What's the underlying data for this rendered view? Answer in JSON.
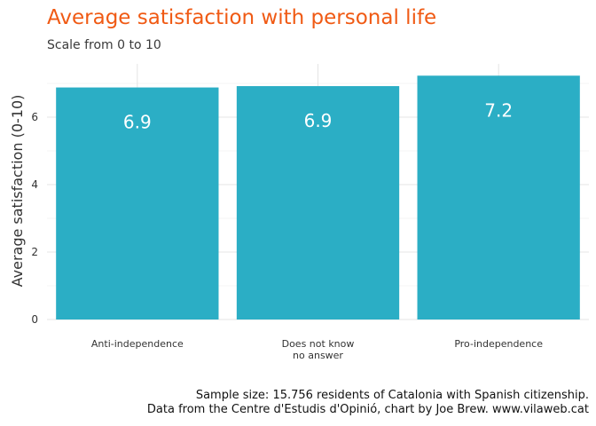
{
  "chart_data": {
    "type": "bar",
    "title": "Average satisfaction with personal life",
    "subtitle": "Scale from 0 to 10",
    "ylabel": "Average satisfaction (0-10)",
    "xlabel": "",
    "categories": [
      "Anti-independence",
      "Does not know\nno answer",
      "Pro-independence"
    ],
    "values": [
      6.88,
      6.92,
      7.23
    ],
    "data_labels": [
      "6.9",
      "6.9",
      "7.2"
    ],
    "yticks": [
      0,
      2,
      4,
      6
    ],
    "ylim": [
      0,
      7.6
    ],
    "grid": true,
    "legend": "none",
    "bar_color": "#2baec5",
    "title_color": "#f05a14"
  },
  "caption": {
    "line1": "Sample size: 15.756 residents of Catalonia with Spanish citizenship.",
    "line2": "Data from the Centre d'Estudis d'Opinió, chart by Joe Brew. www.vilaweb.cat"
  }
}
